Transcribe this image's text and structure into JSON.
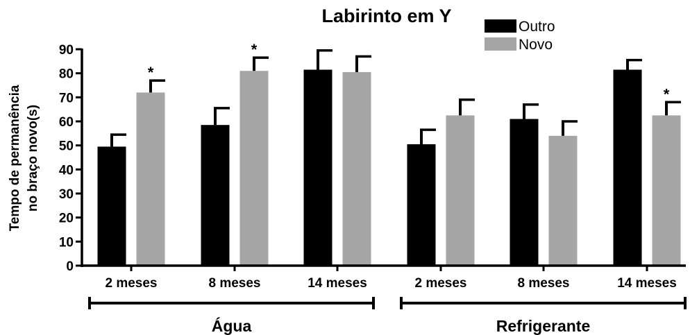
{
  "chart_data": {
    "type": "bar",
    "title": "Labirinto em Y",
    "ylabel_lines": [
      "Tempo de permanência",
      "no braço novo(s)"
    ],
    "ylim": [
      0,
      90
    ],
    "yticks": [
      "0",
      "10",
      "20",
      "30",
      "40",
      "50",
      "60",
      "70",
      "80",
      "90"
    ],
    "categories": [
      "2 meses",
      "8 meses",
      "14 meses",
      "2 meses",
      "8 meses",
      "14 meses"
    ],
    "groups": [
      {
        "label": "Água",
        "categories": [
          0,
          1,
          2
        ]
      },
      {
        "label": "Refrigerante",
        "categories": [
          3,
          4,
          5
        ]
      }
    ],
    "legend_position": "top-right",
    "grid": false,
    "series": [
      {
        "name": "Outro",
        "color": "#000000",
        "values": [
          49.5,
          58.5,
          81.5,
          50.5,
          61,
          81.5
        ],
        "errors": [
          5,
          7,
          8,
          6,
          6,
          4
        ],
        "significance": [
          "",
          "",
          "",
          "",
          "",
          ""
        ]
      },
      {
        "name": "Novo",
        "color": "#a6a6a6",
        "values": [
          72,
          81,
          80.5,
          62.5,
          54,
          62.5
        ],
        "errors": [
          5,
          5.5,
          6.5,
          6.5,
          6,
          5.5
        ],
        "significance": [
          "*",
          "*",
          "",
          "",
          "",
          "*"
        ]
      }
    ]
  }
}
